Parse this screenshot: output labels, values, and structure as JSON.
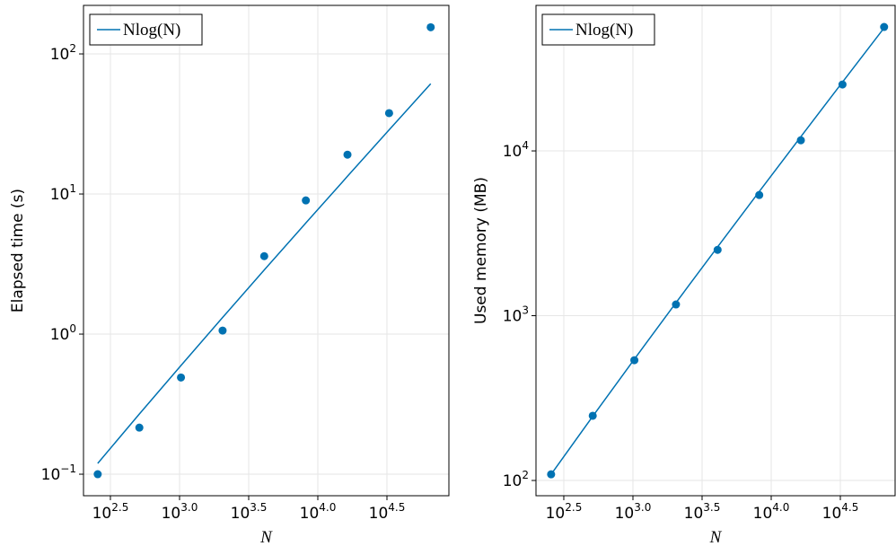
{
  "chart_data": [
    {
      "type": "scatter",
      "xlabel": "N",
      "ylabel": "Elapsed time (s)",
      "log_x": true,
      "log_y": true,
      "grid": true,
      "legend": "top-left",
      "x": [
        256,
        512,
        1024,
        2048,
        4096,
        8192,
        16384,
        32768,
        65536
      ],
      "series": [
        {
          "name": "Nlog(N)",
          "mode": "line",
          "color": "#0072b2",
          "values": [
            0.1195,
            0.269,
            0.597,
            1.314,
            2.868,
            6.21,
            13.38,
            28.68,
            61.2
          ]
        },
        {
          "mode": "markers",
          "color": "#0072b2",
          "values": [
            0.1,
            0.215,
            0.49,
            1.06,
            3.6,
            9.0,
            19.1,
            37.8,
            155
          ]
        }
      ],
      "xlim": [
        202,
        88700
      ],
      "ylim": [
        0.0702,
        222
      ],
      "xticks": [
        {
          "value": 316.228,
          "label": "10^2.5"
        },
        {
          "value": 1000,
          "label": "10^3.0"
        },
        {
          "value": 3162.28,
          "label": "10^3.5"
        },
        {
          "value": 10000,
          "label": "10^4.0"
        },
        {
          "value": 31622.8,
          "label": "10^4.5"
        }
      ],
      "yticks": [
        {
          "value": 0.1,
          "label": "10^−1"
        },
        {
          "value": 1,
          "label": "10^0"
        },
        {
          "value": 10,
          "label": "10^1"
        },
        {
          "value": 100,
          "label": "10^2"
        }
      ]
    },
    {
      "type": "scatter",
      "xlabel": "N",
      "ylabel": "Used memory (MB)",
      "log_x": true,
      "log_y": true,
      "grid": true,
      "legend": "top-left",
      "x": [
        256,
        512,
        1024,
        2048,
        4096,
        8192,
        16384,
        32768,
        65536
      ],
      "series": [
        {
          "name": "Nlog(N)",
          "mode": "line",
          "color": "#0072b2",
          "values": [
            109,
            245,
            545,
            1199,
            2615,
            5666,
            12203,
            26150,
            55786
          ]
        },
        {
          "mode": "markers",
          "color": "#0072b2",
          "values": [
            109,
            247,
            537,
            1170,
            2510,
            5400,
            11600,
            25300,
            56500
          ]
        }
      ],
      "xlim": [
        199,
        78700
      ],
      "ylim": [
        80.8,
        76400
      ],
      "xticks": [
        {
          "value": 316.228,
          "label": "10^2.5"
        },
        {
          "value": 1000,
          "label": "10^3.0"
        },
        {
          "value": 3162.28,
          "label": "10^3.5"
        },
        {
          "value": 10000,
          "label": "10^4.0"
        },
        {
          "value": 31622.8,
          "label": "10^4.5"
        }
      ],
      "yticks": [
        {
          "value": 100,
          "label": "10^2"
        },
        {
          "value": 1000,
          "label": "10^3"
        },
        {
          "value": 10000,
          "label": "10^4"
        }
      ]
    }
  ]
}
